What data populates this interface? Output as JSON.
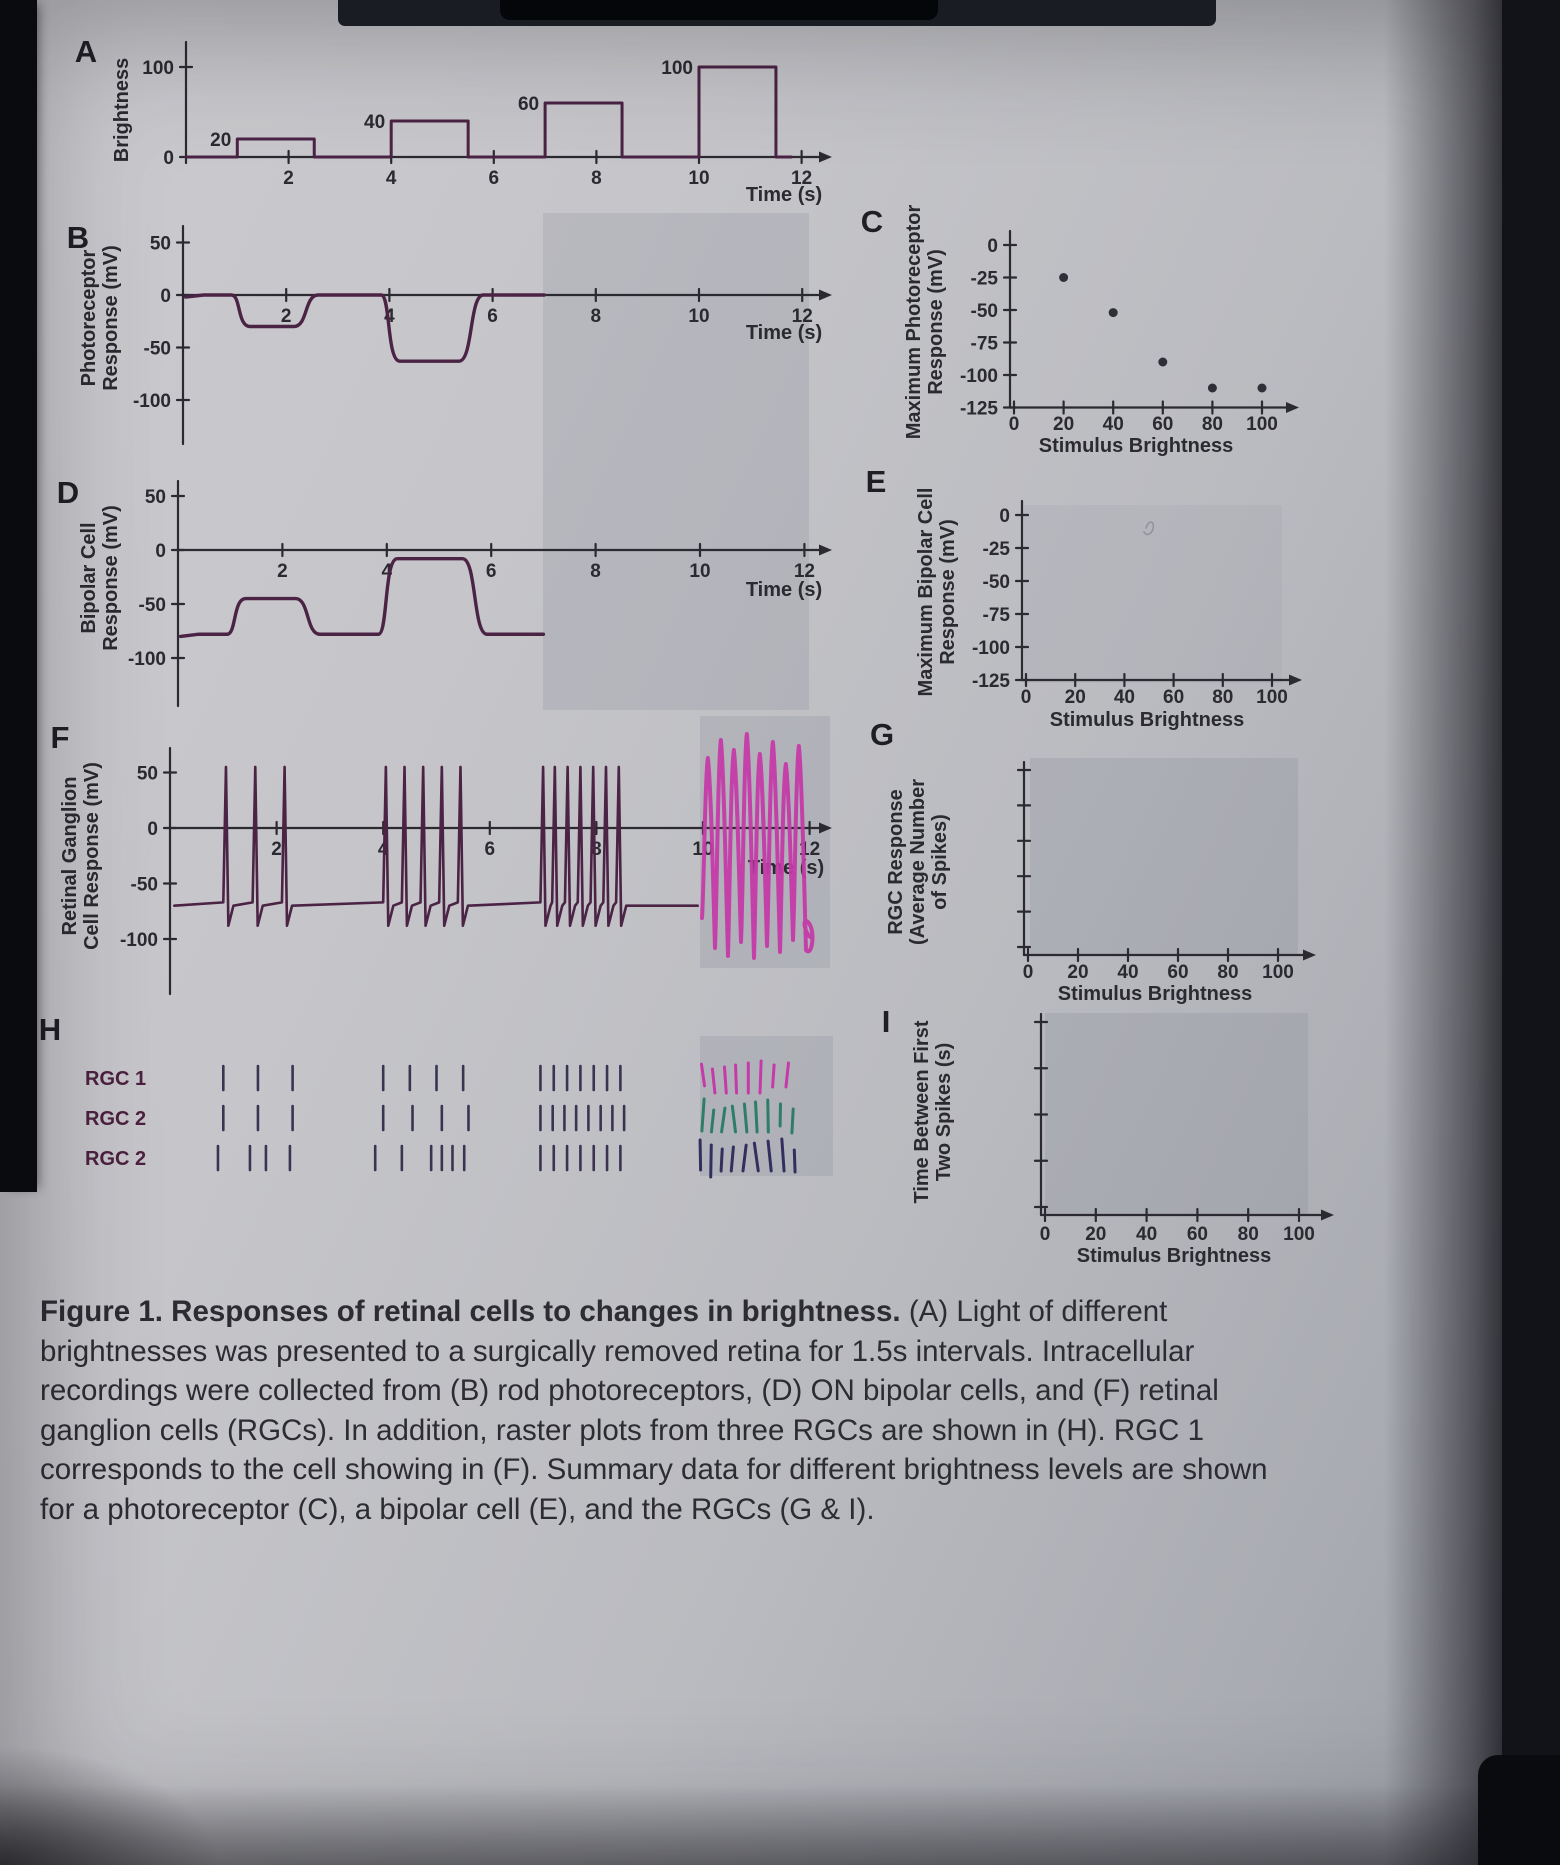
{
  "figure": {
    "caption_bold": "Figure 1. Responses of retinal cells to changes in brightness.",
    "caption_rest": " (A) Light of different brightnesses was presented to a surgically removed retina for 1.5s intervals. Intracellular recordings were collected from (B) rod photoreceptors, (D) ON bipolar cells, and (F) retinal ganglion cells (RGCs). In addition, raster plots from three RGCs are shown in (H). RGC 1 corresponds to the cell showing in (F). Summary data for different brightness levels are shown for a photoreceptor (C), a bipolar cell (E), and the RGCs (G & I)."
  },
  "colors": {
    "trace": "#4b2344",
    "axis": "#2a2a30",
    "letter": "#1e1e24",
    "dot": "#2f2f37",
    "raster": "#3b3352",
    "rgc_label": "#4c2040",
    "hand_pink": "#c43aa8",
    "hand_green": "#2f7d68",
    "hand_dark": "#332e5e",
    "shaded": "#7e8290",
    "pencil": "#8b8b93"
  },
  "chart_data": [
    {
      "id": "A",
      "type": "step",
      "letter": "A",
      "ylabel_lines": [
        "Brightness"
      ],
      "xlabel": "Time (s)",
      "xlim": [
        0,
        12.5
      ],
      "ylim": [
        0,
        105
      ],
      "xticks": [
        2,
        4,
        6,
        8,
        10,
        12
      ],
      "yticks": [
        100,
        0
      ],
      "pulses": [
        {
          "on": 1,
          "off": 2.5,
          "value": 20
        },
        {
          "on": 4,
          "off": 5.5,
          "value": 40
        },
        {
          "on": 7,
          "off": 8.5,
          "value": 60
        },
        {
          "on": 10,
          "off": 11.5,
          "value": 100
        }
      ]
    },
    {
      "id": "B",
      "type": "line",
      "letter": "B",
      "ylabel_lines": [
        "Photoreceptor",
        "Response (mV)"
      ],
      "xlabel": "Time (s)",
      "xlim": [
        0,
        12.5
      ],
      "ylim": [
        -115,
        60
      ],
      "xticks": [
        2,
        4,
        6,
        8,
        10,
        12
      ],
      "yticks": [
        50,
        0,
        -50,
        -100
      ],
      "baseline": 0,
      "events": [
        {
          "on": 1,
          "off": 2.5,
          "peak": -30
        },
        {
          "on": 3.9,
          "off": 5.7,
          "peak": -63
        }
      ],
      "visible_until": 7.0
    },
    {
      "id": "C",
      "type": "scatter",
      "letter": "C",
      "ylabel_lines": [
        "Maximum Photoreceptor",
        "Response (mV)"
      ],
      "xlabel": "Stimulus Brightness",
      "xticks": [
        0,
        20,
        40,
        60,
        80,
        100
      ],
      "yticks": [
        0,
        -25,
        -50,
        -75,
        -100,
        -125
      ],
      "points": [
        [
          20,
          -25
        ],
        [
          40,
          -52
        ],
        [
          60,
          -90
        ],
        [
          80,
          -110
        ],
        [
          100,
          -110
        ]
      ]
    },
    {
      "id": "D",
      "type": "line",
      "letter": "D",
      "ylabel_lines": [
        "Bipolar Cell",
        "Response (mV)"
      ],
      "xlabel": "Time (s)",
      "xlim": [
        0,
        12.5
      ],
      "ylim": [
        -115,
        60
      ],
      "xticks": [
        2,
        4,
        6,
        8,
        10,
        12
      ],
      "yticks": [
        50,
        0,
        -50,
        -100
      ],
      "baseline": -78,
      "events": [
        {
          "on": 1,
          "off": 2.6,
          "peak": -45
        },
        {
          "on": 3.9,
          "off": 5.8,
          "peak": -8
        }
      ],
      "visible_until": 7.0
    },
    {
      "id": "E",
      "type": "scatter",
      "letter": "E",
      "ylabel_lines": [
        "Maximum Bipolar Cell",
        "Response (mV)"
      ],
      "xlabel": "Stimulus Brightness",
      "xticks": [
        0,
        20,
        40,
        60,
        80,
        100
      ],
      "yticks": [
        0,
        -25,
        -50,
        -75,
        -100,
        -125
      ],
      "points": [],
      "pencil_mark": true
    },
    {
      "id": "F",
      "type": "spikes",
      "letter": "F",
      "ylabel_lines": [
        "Retinal Ganglion",
        "Cell Response (mV)"
      ],
      "xlabel": "Time (s)",
      "xlim": [
        0,
        12.5
      ],
      "ylim": [
        -115,
        60
      ],
      "xticks": [
        2,
        4,
        6,
        8,
        10,
        12
      ],
      "yticks": [
        50,
        0,
        -50,
        -100
      ],
      "baseline": -70,
      "spike_peak": 55,
      "spike_trough": -88,
      "spike_groups": [
        [
          1.05,
          1.6,
          2.15
        ],
        [
          4.05,
          4.4,
          4.75,
          5.1,
          5.45
        ],
        [
          7.0,
          7.22,
          7.46,
          7.7,
          7.94,
          8.18,
          8.42
        ]
      ],
      "hand_drawn_response": {
        "from": 10,
        "to": 11.9,
        "color_key": "hand_pink"
      }
    },
    {
      "id": "G",
      "type": "scatter",
      "letter": "G",
      "ylabel_lines": [
        "RGC Response",
        "(Average Number",
        "of Spikes)"
      ],
      "xlabel": "Stimulus Brightness",
      "xticks": [
        0,
        20,
        40,
        60,
        80,
        100
      ],
      "yticks": [],
      "points": []
    },
    {
      "id": "H",
      "type": "raster",
      "letter": "H",
      "rows": [
        {
          "label": "RGC 1",
          "printed_spikes": [
            [
              1.0,
              1.65,
              2.3
            ],
            [
              4.0,
              4.5,
              5.0,
              5.5
            ],
            [
              6.95,
              7.2,
              7.45,
              7.7,
              7.95,
              8.2,
              8.45
            ]
          ],
          "hand_spikes": [
            10.0,
            10.2,
            10.42,
            10.62,
            10.85,
            11.08,
            11.32,
            11.58
          ],
          "hand_color_key": "hand_pink"
        },
        {
          "label": "RGC 2",
          "printed_spikes": [
            [
              1.0,
              1.65,
              2.3
            ],
            [
              4.0,
              4.55,
              5.1,
              5.6
            ],
            [
              6.95,
              7.18,
              7.4,
              7.62,
              7.85,
              8.08,
              8.3,
              8.52
            ]
          ],
          "hand_spikes": [
            10.0,
            10.18,
            10.38,
            10.58,
            10.8,
            11.0,
            11.22,
            11.45,
            11.68
          ],
          "hand_color_key": "hand_green"
        },
        {
          "label": "RGC 2",
          "printed_spikes": [
            [
              0.9,
              1.5,
              1.8,
              2.25
            ],
            [
              3.85,
              4.35,
              4.9,
              5.1,
              5.3,
              5.52
            ],
            [
              6.95,
              7.2,
              7.45,
              7.7,
              7.95,
              8.2,
              8.45
            ]
          ],
          "hand_spikes": [
            9.95,
            10.15,
            10.35,
            10.55,
            10.78,
            11.0,
            11.25,
            11.5,
            11.72
          ],
          "hand_color_key": "hand_dark"
        }
      ]
    },
    {
      "id": "I",
      "type": "scatter",
      "letter": "I",
      "ylabel_lines": [
        "Time Between First",
        "Two Spikes (s)"
      ],
      "xlabel": "Stimulus Brightness",
      "xticks": [
        0,
        20,
        40,
        60,
        80,
        100
      ],
      "yticks": [],
      "points": []
    }
  ]
}
